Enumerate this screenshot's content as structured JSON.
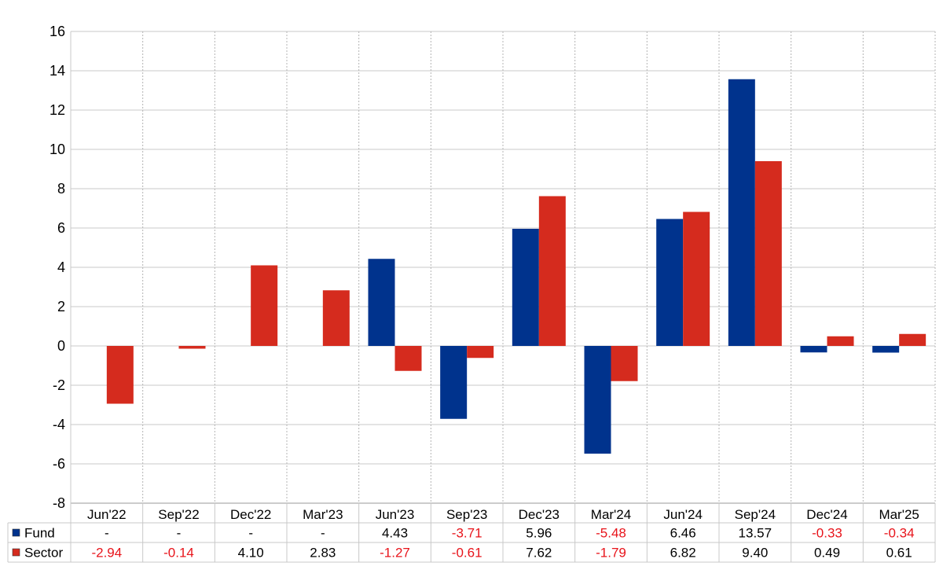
{
  "chart_data": {
    "type": "bar",
    "title": "",
    "xlabel": "",
    "ylabel": "",
    "ylim": [
      -8,
      16
    ],
    "ytick_step": 2,
    "grid": true,
    "legend_placement": "bottom-left (data table)",
    "categories": [
      "Jun'22",
      "Sep'22",
      "Dec'22",
      "Mar'23",
      "Jun'23",
      "Sep'23",
      "Dec'23",
      "Mar'24",
      "Jun'24",
      "Sep'24",
      "Dec'24",
      "Mar'25"
    ],
    "series": [
      {
        "name": "Fund",
        "color": "#00338d",
        "values": [
          null,
          null,
          null,
          null,
          4.43,
          -3.71,
          5.96,
          -5.48,
          6.46,
          13.57,
          -0.33,
          -0.34
        ],
        "labels": [
          "-",
          "-",
          "-",
          "-",
          "4.43",
          "-3.71",
          "5.96",
          "-5.48",
          "6.46",
          "13.57",
          "-0.33",
          "-0.34"
        ]
      },
      {
        "name": "Sector",
        "color": "#d52b1e",
        "values": [
          -2.94,
          -0.14,
          4.1,
          2.83,
          -1.27,
          -0.61,
          7.62,
          -1.79,
          6.82,
          9.4,
          0.49,
          0.61
        ],
        "labels": [
          "-2.94",
          "-0.14",
          "4.10",
          "2.83",
          "-1.27",
          "-0.61",
          "7.62",
          "-1.79",
          "6.82",
          "9.40",
          "0.49",
          "0.61"
        ]
      }
    ],
    "colors": {
      "negative_text": "#e8141b",
      "positive_text": "#000000",
      "grid": "#c8c8c8",
      "axis": "#9a9a9a"
    }
  }
}
